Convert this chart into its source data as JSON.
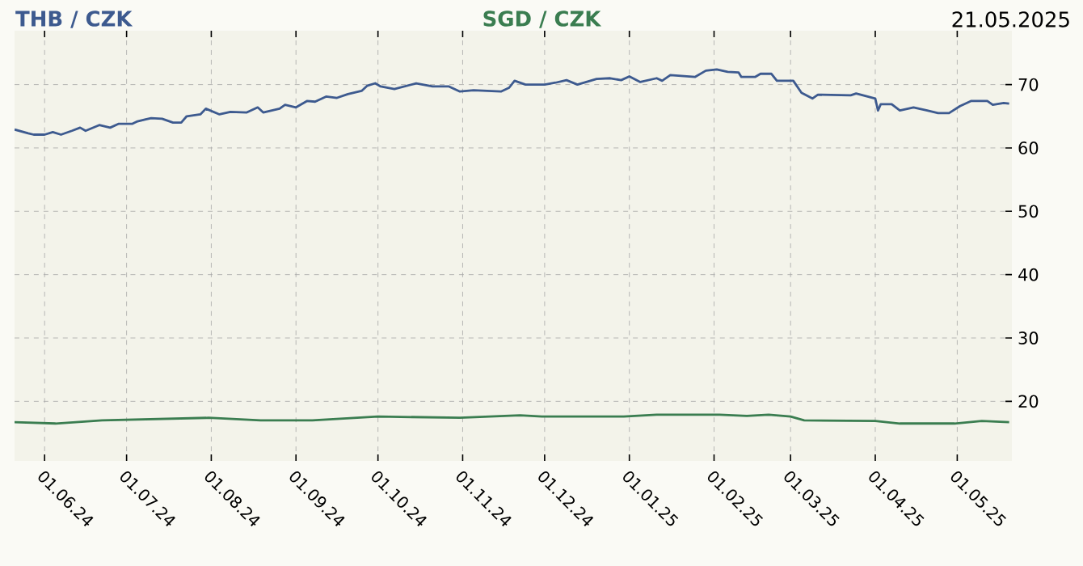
{
  "chart_data": {
    "type": "line",
    "title": "21.05.2025",
    "xlim": [
      "2024-05-21",
      "2025-05-21"
    ],
    "ylim": [
      10.6,
      78.5
    ],
    "xticks": [
      {
        "value": "2024-06-01",
        "label": "01.06.24"
      },
      {
        "value": "2024-07-01",
        "label": "01.07.24"
      },
      {
        "value": "2024-08-01",
        "label": "01.08.24"
      },
      {
        "value": "2024-09-01",
        "label": "01.09.24"
      },
      {
        "value": "2024-10-01",
        "label": "01.10.24"
      },
      {
        "value": "2024-11-01",
        "label": "01.11.24"
      },
      {
        "value": "2024-12-01",
        "label": "01.12.24"
      },
      {
        "value": "2025-01-01",
        "label": "01.01.25"
      },
      {
        "value": "2025-02-01",
        "label": "01.02.25"
      },
      {
        "value": "2025-03-01",
        "label": "01.03.25"
      },
      {
        "value": "2025-04-01",
        "label": "01.04.25"
      },
      {
        "value": "2025-05-01",
        "label": "01.05.25"
      }
    ],
    "yticks": [
      20,
      30,
      40,
      50,
      60,
      70
    ],
    "grid": true,
    "legend": "top",
    "series": [
      {
        "name": "THB / CZK",
        "color": "#3d5a8f",
        "x": [
          "2024-05-21",
          "2024-05-26",
          "2024-05-28",
          "2024-06-01",
          "2024-06-04",
          "2024-06-07",
          "2024-06-11",
          "2024-06-14",
          "2024-06-16",
          "2024-06-21",
          "2024-06-25",
          "2024-06-28",
          "2024-07-03",
          "2024-07-05",
          "2024-07-08",
          "2024-07-10",
          "2024-07-14",
          "2024-07-18",
          "2024-07-21",
          "2024-07-23",
          "2024-07-28",
          "2024-07-30",
          "2024-08-04",
          "2024-08-08",
          "2024-08-14",
          "2024-08-18",
          "2024-08-20",
          "2024-08-26",
          "2024-08-28",
          "2024-09-01",
          "2024-09-05",
          "2024-09-08",
          "2024-09-12",
          "2024-09-16",
          "2024-09-20",
          "2024-09-25",
          "2024-09-27",
          "2024-09-30",
          "2024-10-02",
          "2024-10-07",
          "2024-10-15",
          "2024-10-21",
          "2024-10-27",
          "2024-10-31",
          "2024-11-05",
          "2024-11-15",
          "2024-11-18",
          "2024-11-20",
          "2024-11-24",
          "2024-12-01",
          "2024-12-05",
          "2024-12-09",
          "2024-12-13",
          "2024-12-20",
          "2024-12-25",
          "2024-12-29",
          "2025-01-01",
          "2025-01-05",
          "2025-01-11",
          "2025-01-13",
          "2025-01-16",
          "2025-01-25",
          "2025-01-29",
          "2025-02-02",
          "2025-02-06",
          "2025-02-10",
          "2025-02-11",
          "2025-02-16",
          "2025-02-18",
          "2025-02-22",
          "2025-02-24",
          "2025-03-02",
          "2025-03-05",
          "2025-03-09",
          "2025-03-11",
          "2025-03-23",
          "2025-03-25",
          "2025-04-01",
          "2025-04-02",
          "2025-04-03",
          "2025-04-07",
          "2025-04-10",
          "2025-04-15",
          "2025-04-20",
          "2025-04-24",
          "2025-04-28",
          "2025-05-02",
          "2025-05-06",
          "2025-05-12",
          "2025-05-14",
          "2025-05-18",
          "2025-05-20"
        ],
        "values": [
          62.9,
          62.3,
          62.1,
          62.1,
          62.5,
          62.1,
          62.7,
          63.2,
          62.7,
          63.6,
          63.2,
          63.8,
          63.8,
          64.2,
          64.5,
          64.7,
          64.6,
          64.0,
          64.0,
          65.0,
          65.3,
          66.2,
          65.3,
          65.7,
          65.6,
          66.4,
          65.6,
          66.2,
          66.8,
          66.4,
          67.4,
          67.3,
          68.1,
          67.9,
          68.5,
          69.0,
          69.8,
          70.2,
          69.7,
          69.3,
          70.2,
          69.7,
          69.7,
          68.9,
          69.1,
          68.9,
          69.5,
          70.6,
          70.0,
          70.0,
          70.3,
          70.7,
          70.0,
          70.9,
          71.0,
          70.7,
          71.3,
          70.4,
          71.0,
          70.6,
          71.5,
          71.2,
          72.2,
          72.4,
          72.0,
          71.9,
          71.2,
          71.2,
          71.7,
          71.7,
          70.6,
          70.6,
          68.7,
          67.8,
          68.4,
          68.3,
          68.6,
          67.8,
          65.9,
          66.9,
          66.9,
          65.9,
          66.4,
          65.9,
          65.5,
          65.5,
          66.6,
          67.4,
          67.4,
          66.8,
          67.1,
          67.0
        ]
      },
      {
        "name": "SGD / CZK",
        "color": "#3a7d50",
        "x": [
          "2024-05-21",
          "2024-06-05",
          "2024-06-22",
          "2024-07-31",
          "2024-08-19",
          "2024-09-07",
          "2024-10-01",
          "2024-10-31",
          "2024-11-22",
          "2024-11-30",
          "2024-12-30",
          "2025-01-11",
          "2025-02-03",
          "2025-02-13",
          "2025-02-21",
          "2025-03-01",
          "2025-03-06",
          "2025-04-01",
          "2025-04-10",
          "2025-04-30",
          "2025-05-10",
          "2025-05-20"
        ],
        "values": [
          16.7,
          16.5,
          17.0,
          17.4,
          17.0,
          17.0,
          17.6,
          17.4,
          17.8,
          17.6,
          17.6,
          17.9,
          17.9,
          17.7,
          17.9,
          17.6,
          17.0,
          16.9,
          16.5,
          16.5,
          16.9,
          16.7
        ]
      }
    ]
  }
}
